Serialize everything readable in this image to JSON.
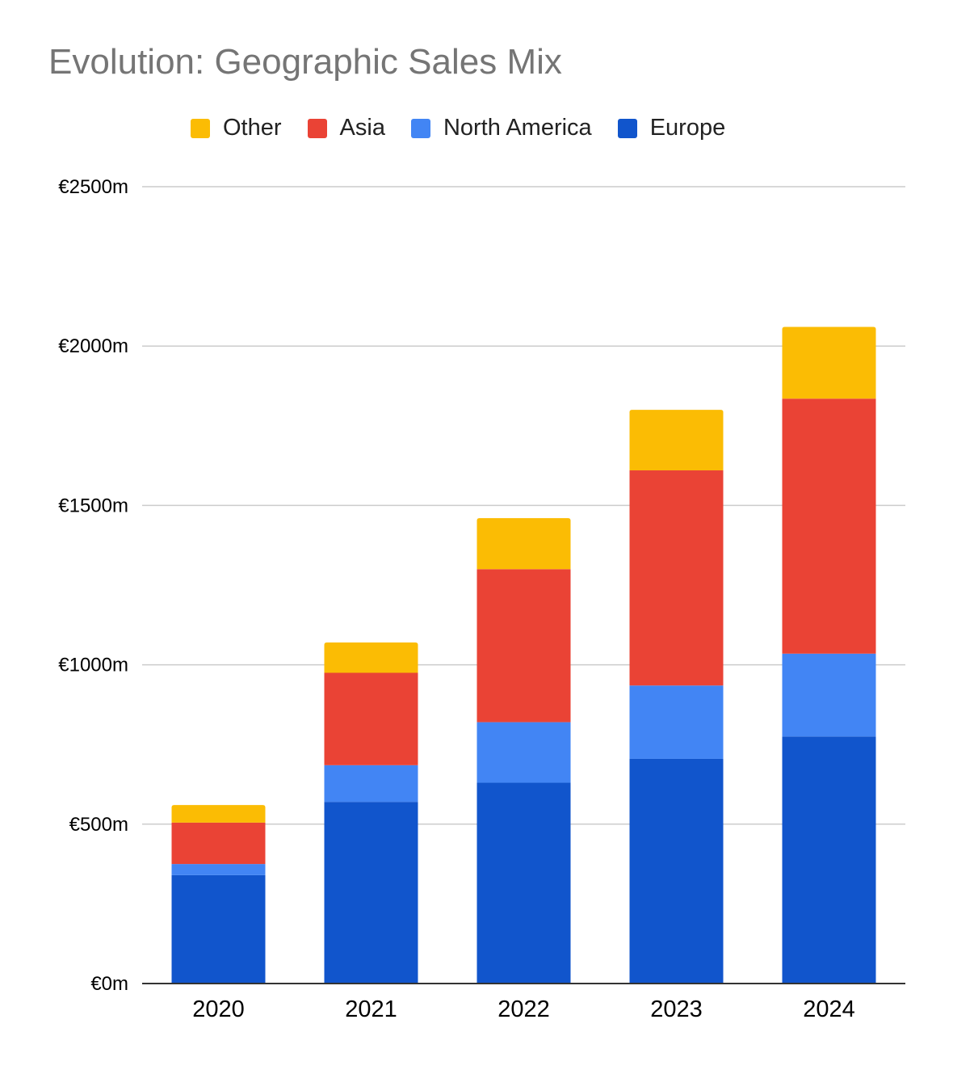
{
  "colors": {
    "Other": "#FBBC04",
    "Asia": "#EA4335",
    "North America": "#4285F4",
    "Europe": "#1155CC"
  },
  "chart_data": {
    "type": "bar",
    "stacked": true,
    "title": "Evolution: Geographic Sales Mix",
    "xlabel": "",
    "ylabel": "",
    "categories": [
      "2020",
      "2021",
      "2022",
      "2023",
      "2024"
    ],
    "series": [
      {
        "name": "Europe",
        "values": [
          340,
          570,
          630,
          705,
          775
        ]
      },
      {
        "name": "North America",
        "values": [
          35,
          115,
          190,
          230,
          260
        ]
      },
      {
        "name": "Asia",
        "values": [
          130,
          290,
          480,
          675,
          800
        ]
      },
      {
        "name": "Other",
        "values": [
          55,
          95,
          160,
          190,
          225
        ]
      }
    ],
    "legend_order": [
      "Other",
      "Asia",
      "North America",
      "Europe"
    ],
    "ylim": [
      0,
      2500
    ],
    "y_ticks": [
      {
        "value": 0,
        "label": "€0m"
      },
      {
        "value": 500,
        "label": "€500m"
      },
      {
        "value": 1000,
        "label": "€1000m"
      },
      {
        "value": 1500,
        "label": "€1500m"
      },
      {
        "value": 2000,
        "label": "€2000m"
      },
      {
        "value": 2500,
        "label": "€2500m"
      }
    ],
    "grid": true,
    "legend_position": "top"
  }
}
